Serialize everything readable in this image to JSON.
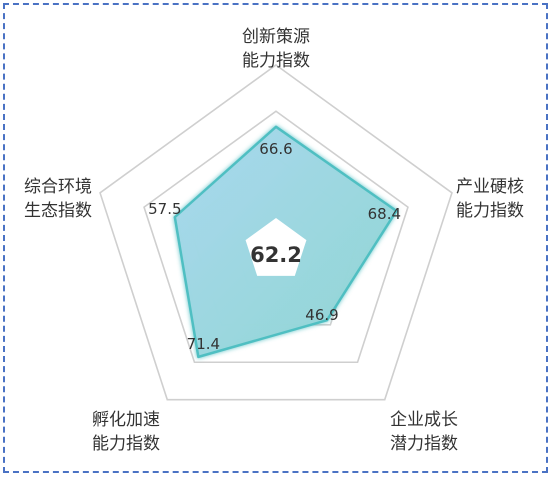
{
  "chart_data": {
    "type": "radar",
    "center_value": "62.2",
    "axes": [
      {
        "label_lines": [
          "创新策源",
          "能力指数"
        ],
        "value": 66.6,
        "value_label": "66.6"
      },
      {
        "label_lines": [
          "产业硬核",
          "能力指数"
        ],
        "value": 68.4,
        "value_label": "68.4"
      },
      {
        "label_lines": [
          "企业成长",
          "潜力指数"
        ],
        "value": 46.9,
        "value_label": "46.9"
      },
      {
        "label_lines": [
          "孵化加速",
          "能力指数"
        ],
        "value": 71.4,
        "value_label": "71.4"
      },
      {
        "label_lines": [
          "综合环境",
          "生态指数"
        ],
        "value": 57.5,
        "value_label": "57.5"
      }
    ],
    "range": [
      0,
      100
    ],
    "grid": true,
    "grid_levels": 4,
    "colors": {
      "fill_start": "#a9d8ee",
      "fill_end": "#8fd6d2",
      "stroke": "#4fbfc2",
      "grid": "#cfcfcf",
      "frame": "#4a72c4"
    }
  }
}
